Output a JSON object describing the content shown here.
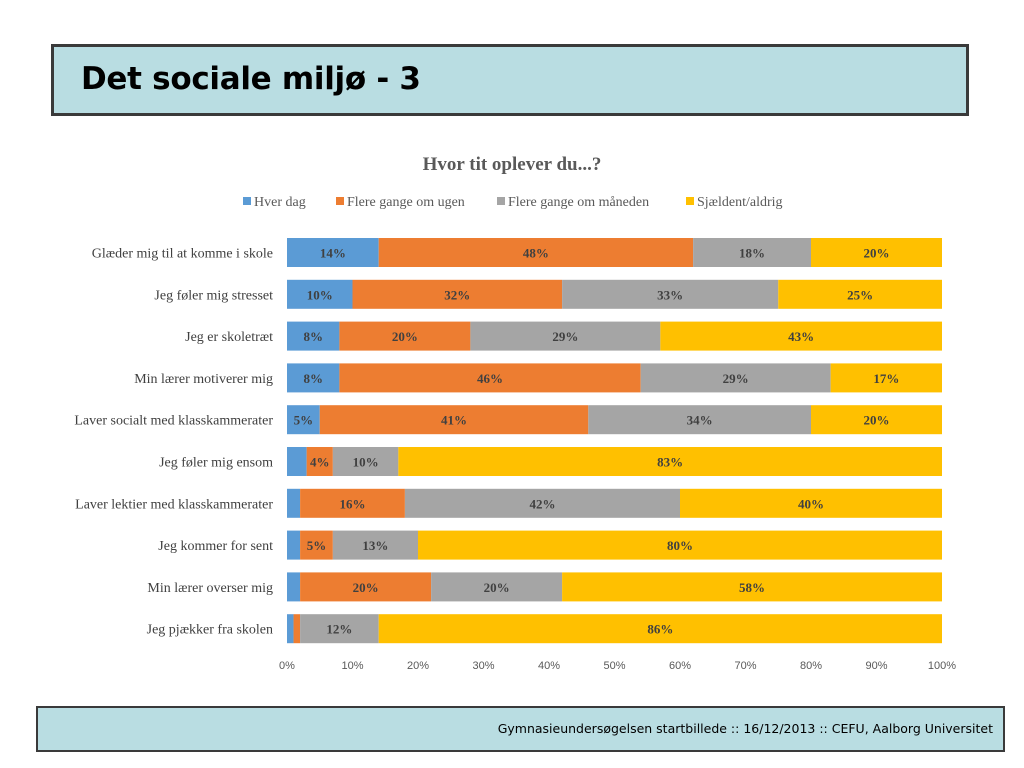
{
  "slide": {
    "title": "Det sociale miljø - 3",
    "footer": "Gymnasieundersøgelsen startbillede ::  16/12/2013  ::  CEFU, Aalborg Universitet"
  },
  "colors": {
    "title_bg": "#b9dde2",
    "series": [
      "#5b9bd5",
      "#ed7d31",
      "#a5a5a5",
      "#ffc000"
    ]
  },
  "chart_data": {
    "type": "bar",
    "orientation": "horizontal",
    "stacked": true,
    "title": "Hvor tit oplever du...?",
    "xlim": [
      0,
      100
    ],
    "x_ticks": [
      "0%",
      "10%",
      "20%",
      "30%",
      "40%",
      "50%",
      "60%",
      "70%",
      "80%",
      "90%",
      "100%"
    ],
    "grid": false,
    "legend_position": "top",
    "categories": [
      "Glæder mig til at komme i skole",
      "Jeg føler mig stresset",
      "Jeg er skoletræt",
      "Min lærer motiverer mig",
      "Laver socialt med klasskammerater",
      "Jeg føler mig ensom",
      "Laver lektier med klasskammerater",
      "Jeg kommer for sent",
      "Min lærer overser mig",
      "Jeg pjækker fra skolen"
    ],
    "series": [
      {
        "name": "Hver dag",
        "values": [
          14,
          10,
          8,
          8,
          5,
          3,
          2,
          2,
          2,
          1
        ],
        "labels": [
          "14%",
          "10%",
          "8%",
          "8%",
          "5%",
          "",
          "",
          "",
          "",
          ""
        ]
      },
      {
        "name": "Flere gange om ugen",
        "values": [
          48,
          32,
          20,
          46,
          41,
          4,
          16,
          5,
          20,
          1
        ],
        "labels": [
          "48%",
          "32%",
          "20%",
          "46%",
          "41%",
          "4%",
          "16%",
          "5%",
          "20%",
          ""
        ]
      },
      {
        "name": "Flere gange om måneden",
        "values": [
          18,
          33,
          29,
          29,
          34,
          10,
          42,
          13,
          20,
          12
        ],
        "labels": [
          "18%",
          "33%",
          "29%",
          "29%",
          "34%",
          "10%",
          "42%",
          "13%",
          "20%",
          "12%"
        ]
      },
      {
        "name": "Sjældent/aldrig",
        "values": [
          20,
          25,
          43,
          17,
          20,
          83,
          40,
          80,
          58,
          86
        ],
        "labels": [
          "20%",
          "25%",
          "43%",
          "17%",
          "20%",
          "83%",
          "40%",
          "80%",
          "58%",
          "86%"
        ]
      }
    ]
  }
}
